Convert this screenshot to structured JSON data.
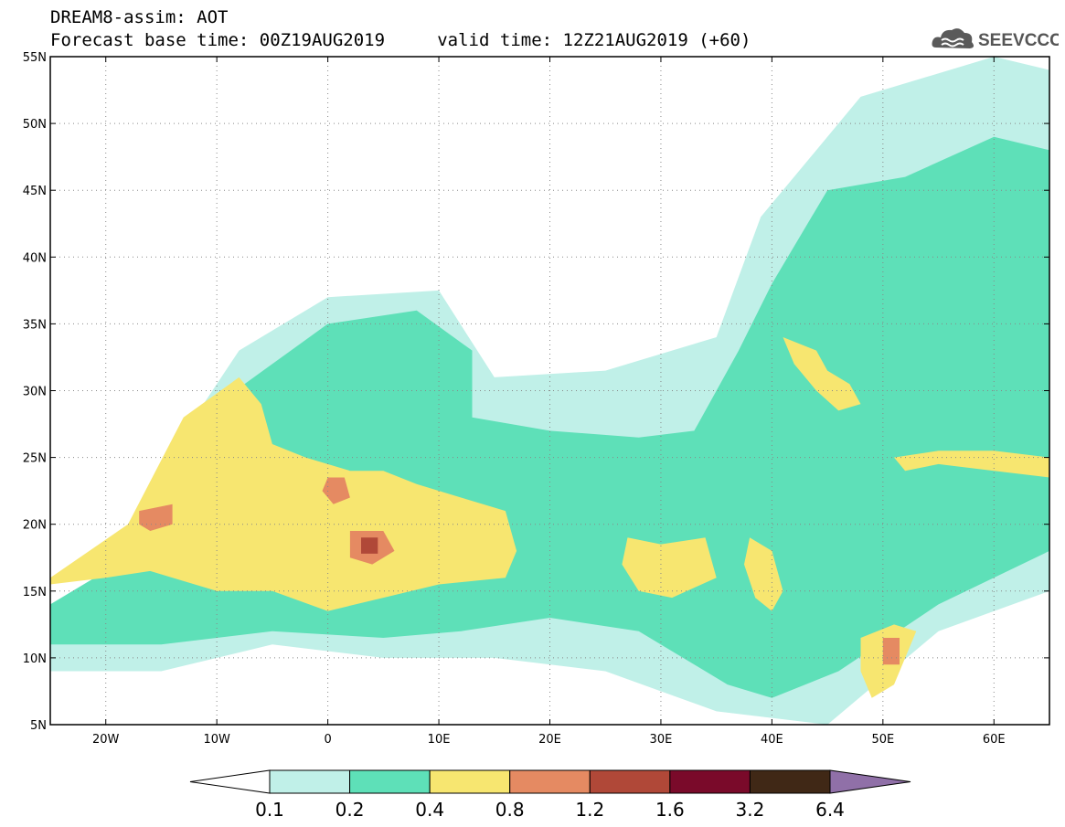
{
  "header": {
    "title_line1": "DREAM8-assim: AOT",
    "title_line2": "Forecast base time: 00Z19AUG2019     valid time: 12Z21AUG2019 (+60)",
    "logo_text": "SEEVCCC",
    "logo_icon": "cloud-icon"
  },
  "map": {
    "projection": "lat-lon",
    "lon_range": [
      -25,
      65
    ],
    "lat_range": [
      5,
      55
    ],
    "lat_ticks": [
      {
        "value": 55,
        "label": "55N"
      },
      {
        "value": 50,
        "label": "50N"
      },
      {
        "value": 45,
        "label": "45N"
      },
      {
        "value": 40,
        "label": "40N"
      },
      {
        "value": 35,
        "label": "35N"
      },
      {
        "value": 30,
        "label": "30N"
      },
      {
        "value": 25,
        "label": "25N"
      },
      {
        "value": 20,
        "label": "20N"
      },
      {
        "value": 15,
        "label": "15N"
      },
      {
        "value": 10,
        "label": "10N"
      },
      {
        "value": 5,
        "label": "5N"
      }
    ],
    "lon_ticks": [
      {
        "value": -20,
        "label": "20W"
      },
      {
        "value": -10,
        "label": "10W"
      },
      {
        "value": 0,
        "label": "0"
      },
      {
        "value": 10,
        "label": "10E"
      },
      {
        "value": 20,
        "label": "20E"
      },
      {
        "value": 30,
        "label": "30E"
      },
      {
        "value": 40,
        "label": "40E"
      },
      {
        "value": 50,
        "label": "50E"
      },
      {
        "value": 60,
        "label": "60E"
      }
    ],
    "gridlines": "dotted",
    "regions": [
      {
        "level": 0,
        "points": [
          [
            -25,
            13
          ],
          [
            -20,
            15
          ],
          [
            -16,
            23
          ],
          [
            -8,
            33
          ],
          [
            0,
            37
          ],
          [
            10,
            37.5
          ],
          [
            15,
            31
          ],
          [
            25,
            31.5
          ],
          [
            35,
            34
          ],
          [
            39,
            43
          ],
          [
            48,
            52
          ],
          [
            60,
            55
          ],
          [
            65,
            54
          ],
          [
            65,
            15
          ],
          [
            55,
            12
          ],
          [
            45,
            5
          ],
          [
            35,
            6
          ],
          [
            25,
            9
          ],
          [
            15,
            10
          ],
          [
            5,
            10
          ],
          [
            -5,
            11
          ],
          [
            -15,
            9
          ],
          [
            -25,
            9
          ]
        ]
      },
      {
        "level": 1,
        "points": [
          [
            -25,
            14
          ],
          [
            -21,
            16
          ],
          [
            -16,
            22
          ],
          [
            -10,
            29
          ],
          [
            -5,
            32
          ],
          [
            0,
            35
          ],
          [
            8,
            36
          ],
          [
            13,
            33
          ],
          [
            13,
            28
          ],
          [
            20,
            27
          ],
          [
            28,
            26.5
          ],
          [
            33,
            27
          ],
          [
            37,
            33
          ],
          [
            40,
            38
          ],
          [
            45,
            45
          ],
          [
            52,
            46
          ],
          [
            60,
            49
          ],
          [
            65,
            48
          ],
          [
            65,
            18
          ],
          [
            55,
            14
          ],
          [
            46,
            9
          ],
          [
            40,
            7
          ],
          [
            36,
            8
          ],
          [
            28,
            12
          ],
          [
            20,
            13
          ],
          [
            12,
            12
          ],
          [
            5,
            11.5
          ],
          [
            -5,
            12
          ],
          [
            -15,
            11
          ],
          [
            -25,
            11
          ]
        ]
      },
      {
        "level": 2,
        "points": [
          [
            -25,
            16
          ],
          [
            -18,
            20
          ],
          [
            -13,
            28
          ],
          [
            -8,
            31
          ],
          [
            -6,
            29
          ],
          [
            -5,
            26
          ],
          [
            -2,
            25
          ],
          [
            2,
            24
          ],
          [
            5,
            24
          ],
          [
            8,
            23
          ],
          [
            12,
            22
          ],
          [
            16,
            21
          ],
          [
            17,
            18
          ],
          [
            16,
            16
          ],
          [
            10,
            15.5
          ],
          [
            5,
            14.5
          ],
          [
            0,
            13.5
          ],
          [
            -5,
            15
          ],
          [
            -10,
            15
          ],
          [
            -16,
            16.5
          ],
          [
            -20,
            16
          ],
          [
            -25,
            15.5
          ]
        ]
      },
      {
        "level": 2,
        "points": [
          [
            27,
            19
          ],
          [
            30,
            18.5
          ],
          [
            34,
            19
          ],
          [
            35,
            16
          ],
          [
            31,
            14.5
          ],
          [
            28,
            15
          ],
          [
            26.5,
            17
          ]
        ]
      },
      {
        "level": 2,
        "points": [
          [
            41,
            34
          ],
          [
            44,
            33
          ],
          [
            45,
            31.5
          ],
          [
            47,
            30.5
          ],
          [
            48,
            29
          ],
          [
            46,
            28.5
          ],
          [
            44,
            30
          ],
          [
            42,
            32
          ]
        ]
      },
      {
        "level": 2,
        "points": [
          [
            48,
            11.5
          ],
          [
            51,
            12.5
          ],
          [
            53,
            12
          ],
          [
            51,
            8
          ],
          [
            49,
            7
          ],
          [
            48,
            9
          ]
        ]
      },
      {
        "level": 2,
        "points": [
          [
            51,
            25
          ],
          [
            55,
            25.5
          ],
          [
            60,
            25.5
          ],
          [
            65,
            25
          ],
          [
            65,
            23.5
          ],
          [
            60,
            24
          ],
          [
            55,
            24.5
          ],
          [
            52,
            24
          ]
        ]
      },
      {
        "level": 2,
        "points": [
          [
            38,
            19
          ],
          [
            40,
            18
          ],
          [
            41,
            15
          ],
          [
            40,
            13.5
          ],
          [
            38.5,
            14.5
          ],
          [
            37.5,
            17
          ]
        ]
      },
      {
        "level": 3,
        "points": [
          [
            -17,
            21
          ],
          [
            -14,
            21.5
          ],
          [
            -14,
            20
          ],
          [
            -16,
            19.5
          ],
          [
            -17,
            20
          ]
        ]
      },
      {
        "level": 3,
        "points": [
          [
            2,
            19.5
          ],
          [
            5,
            19.5
          ],
          [
            6,
            18
          ],
          [
            4,
            17
          ],
          [
            2,
            17.5
          ]
        ]
      },
      {
        "level": 3,
        "points": [
          [
            0,
            23.5
          ],
          [
            1.5,
            23.5
          ],
          [
            2,
            22
          ],
          [
            0.5,
            21.5
          ],
          [
            -0.5,
            22.5
          ]
        ]
      },
      {
        "level": 3,
        "points": [
          [
            50,
            11.5
          ],
          [
            51.5,
            11.5
          ],
          [
            51.5,
            9.5
          ],
          [
            50,
            9.5
          ]
        ]
      },
      {
        "level": 4,
        "points": [
          [
            3,
            19
          ],
          [
            4.5,
            19
          ],
          [
            4.5,
            17.8
          ],
          [
            3,
            17.8
          ]
        ]
      }
    ]
  },
  "colorbar": {
    "labels": [
      "0.1",
      "0.2",
      "0.4",
      "0.8",
      "1.2",
      "1.6",
      "3.2",
      "6.4"
    ],
    "colors": [
      "#ffffff",
      "#c0f0e8",
      "#5ee0b8",
      "#f7e670",
      "#e58a62",
      "#b04838",
      "#7a0a2a",
      "#402816",
      "#9070a8"
    ]
  }
}
